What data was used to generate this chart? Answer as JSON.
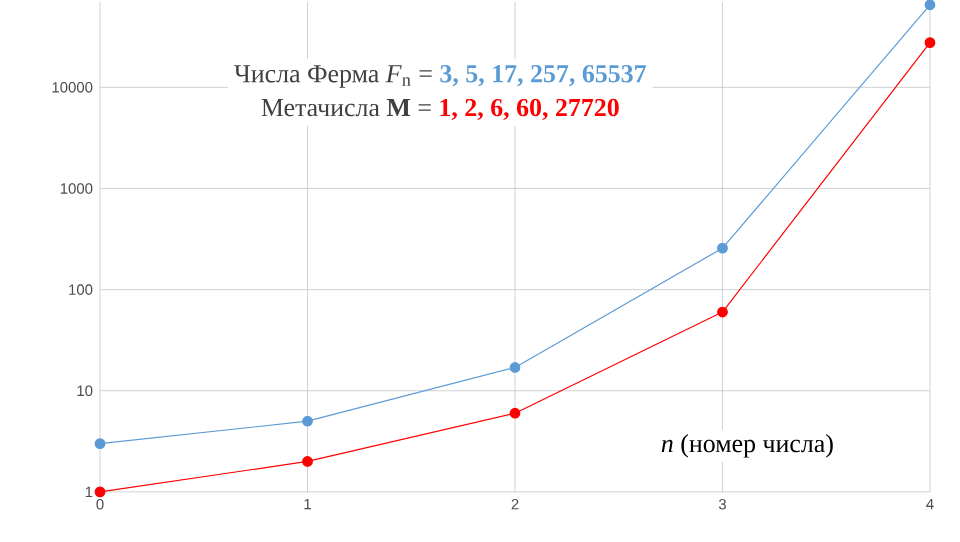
{
  "chart_data": {
    "type": "line",
    "xlabel": "*n* (номер числа)",
    "x": [
      0,
      1,
      2,
      3,
      4
    ],
    "series": [
      {
        "color": "#5b9bd5",
        "values": [
          3,
          5,
          17,
          257,
          65537
        ]
      },
      {
        "color": "#ff0000",
        "values": [
          1,
          2,
          6,
          60,
          27720
        ]
      }
    ],
    "annotations": [
      "Числа Ферма *F*$_{n}$ =",
      "**3, 5, 17, 257, 65537**",
      "Метачисла **M** =",
      "**1, 2, 6, 60, 27720**"
    ],
    "log": "y",
    "xlim": [
      0,
      4
    ],
    "ylim": [
      1,
      70000
    ],
    "xticks": [
      0,
      1,
      2,
      3,
      4
    ],
    "yticks": [
      1,
      10,
      100,
      1000,
      10000
    ],
    "grid": true,
    "marker": "circle",
    "line_style": "solid"
  }
}
